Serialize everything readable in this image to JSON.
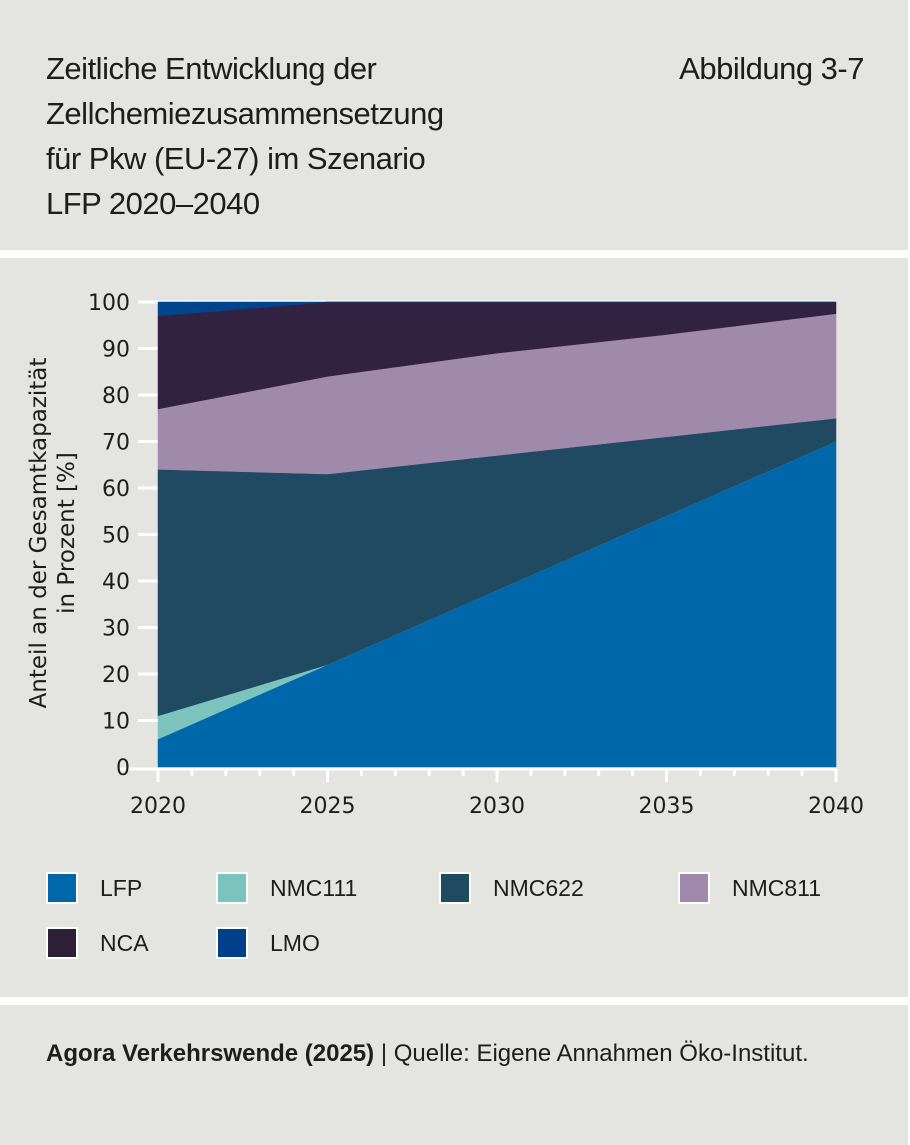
{
  "header": {
    "title_lines": [
      "Zeitliche Entwicklung der",
      "Zellchemiezusammensetzung",
      "für Pkw (EU-27) im Szenario",
      "LFP 2020–2040"
    ],
    "figure_number": "Abbildung 3-7"
  },
  "chart_data": {
    "type": "area",
    "stacked": true,
    "title": "Zeitliche Entwicklung der Zellchemiezusammensetzung für Pkw (EU-27) im Szenario LFP 2020–2040",
    "xlabel": "",
    "ylabel_lines": [
      "Anteil an der Gesamtkapazität",
      "in Prozent [%]"
    ],
    "x": [
      2020,
      2025,
      2030,
      2035,
      2040
    ],
    "xlim": [
      2020,
      2040
    ],
    "ylim": [
      0,
      100
    ],
    "x_ticks": [
      2020,
      2025,
      2030,
      2035,
      2040
    ],
    "x_tick_labels": [
      "2020",
      "2025",
      "2030",
      "2035",
      "2040"
    ],
    "y_ticks": [
      0,
      10,
      20,
      30,
      40,
      50,
      60,
      70,
      80,
      90,
      100
    ],
    "y_tick_labels": [
      "0",
      "10",
      "20",
      "30",
      "40",
      "50",
      "60",
      "70",
      "80",
      "90",
      "100"
    ],
    "grid": true,
    "legend_position": "bottom",
    "series": [
      {
        "name": "LFP",
        "color": "#0068aa",
        "values": [
          6,
          22,
          38,
          54,
          70
        ]
      },
      {
        "name": "NMC111",
        "color": "#7cc3bd",
        "values": [
          5,
          0,
          0,
          0,
          0
        ]
      },
      {
        "name": "NMC622",
        "color": "#1f4a62",
        "values": [
          53,
          41,
          29,
          17,
          5
        ]
      },
      {
        "name": "NMC811",
        "color": "#a08aab",
        "values": [
          13,
          21,
          22,
          22,
          22.5
        ]
      },
      {
        "name": "NCA",
        "color": "#322242",
        "values": [
          20,
          16,
          11,
          7,
          2.5
        ]
      },
      {
        "name": "LMO",
        "color": "#00448c",
        "values": [
          3,
          0,
          0,
          0,
          0
        ]
      }
    ]
  },
  "legend": {
    "items": [
      {
        "label": "LFP",
        "color": "#0068aa"
      },
      {
        "label": "NMC111",
        "color": "#7cc3bd"
      },
      {
        "label": "NMC622",
        "color": "#1f4a62"
      },
      {
        "label": "NMC811",
        "color": "#a08aab"
      },
      {
        "label": "NCA",
        "color": "#2c1f36"
      },
      {
        "label": "LMO",
        "color": "#00408a"
      }
    ]
  },
  "footer": {
    "publisher": "Agora Verkehrswende (2025)",
    "separator": " | ",
    "source": "Quelle: Eigene Annahmen Öko-Institut."
  }
}
